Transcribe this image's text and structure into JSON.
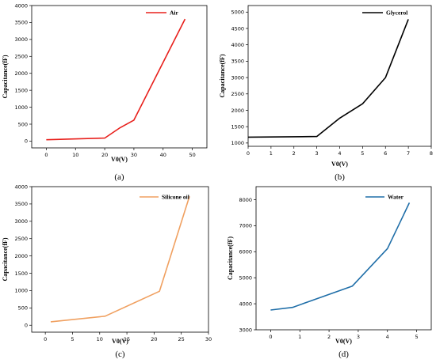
{
  "chart_data": [
    {
      "type": "line",
      "caption": "(a)",
      "xlabel": "V0(V)",
      "ylabel": "Capacitance(fF)",
      "xlim": [
        -5,
        55
      ],
      "ylim": [
        -200,
        4000
      ],
      "xticks": [
        0,
        10,
        20,
        30,
        40,
        50
      ],
      "yticks": [
        0,
        500,
        1000,
        1500,
        2000,
        2500,
        3000,
        3500,
        4000
      ],
      "legend_position": "top-right",
      "color": "#e8201c",
      "series": [
        {
          "name": "Air",
          "x": [
            0,
            20,
            25,
            30,
            47.5
          ],
          "y": [
            40,
            90,
            380,
            620,
            3600
          ]
        }
      ]
    },
    {
      "type": "line",
      "caption": "(b)",
      "xlabel": "V0(V)",
      "ylabel": "Capacitance(fF)",
      "xlim": [
        0,
        8
      ],
      "ylim": [
        900,
        5200
      ],
      "xticks": [
        0,
        1,
        2,
        3,
        4,
        5,
        6,
        7,
        8
      ],
      "yticks": [
        1000,
        1500,
        2000,
        2500,
        3000,
        3500,
        4000,
        4500,
        5000
      ],
      "legend_position": "top-right",
      "color": "#000000",
      "series": [
        {
          "name": "Glycerol",
          "x": [
            0,
            3,
            4,
            5,
            6,
            7
          ],
          "y": [
            1180,
            1200,
            1760,
            2200,
            3000,
            4780
          ]
        }
      ]
    },
    {
      "type": "line",
      "caption": "(c)",
      "xlabel": "V0(V)",
      "ylabel": "Capacitance(fF)",
      "xlim": [
        -2.5,
        30
      ],
      "ylim": [
        -200,
        4000
      ],
      "xticks": [
        0,
        5,
        10,
        15,
        20,
        25,
        30
      ],
      "yticks": [
        0,
        500,
        1000,
        1500,
        2000,
        2500,
        3000,
        3500,
        4000
      ],
      "legend_position": "top-left",
      "color": "#f0a060",
      "series": [
        {
          "name": "Silicone oil",
          "x": [
            1,
            11,
            21,
            26.5
          ],
          "y": [
            100,
            260,
            980,
            3720
          ]
        }
      ]
    },
    {
      "type": "line",
      "caption": "(d)",
      "xlabel": "V0(V)",
      "ylabel": "Capacitance(fF)",
      "xlim": [
        -0.5,
        5.5
      ],
      "ylim": [
        3000,
        8500
      ],
      "xticks": [
        0,
        1,
        2,
        3,
        4,
        5
      ],
      "yticks": [
        3000,
        4000,
        5000,
        6000,
        7000,
        8000
      ],
      "legend_position": "top-left",
      "color": "#1f6ea8",
      "series": [
        {
          "name": "Water",
          "x": [
            0,
            0.75,
            2.8,
            4,
            4.75
          ],
          "y": [
            3760,
            3860,
            4680,
            6120,
            7880
          ]
        }
      ]
    }
  ]
}
